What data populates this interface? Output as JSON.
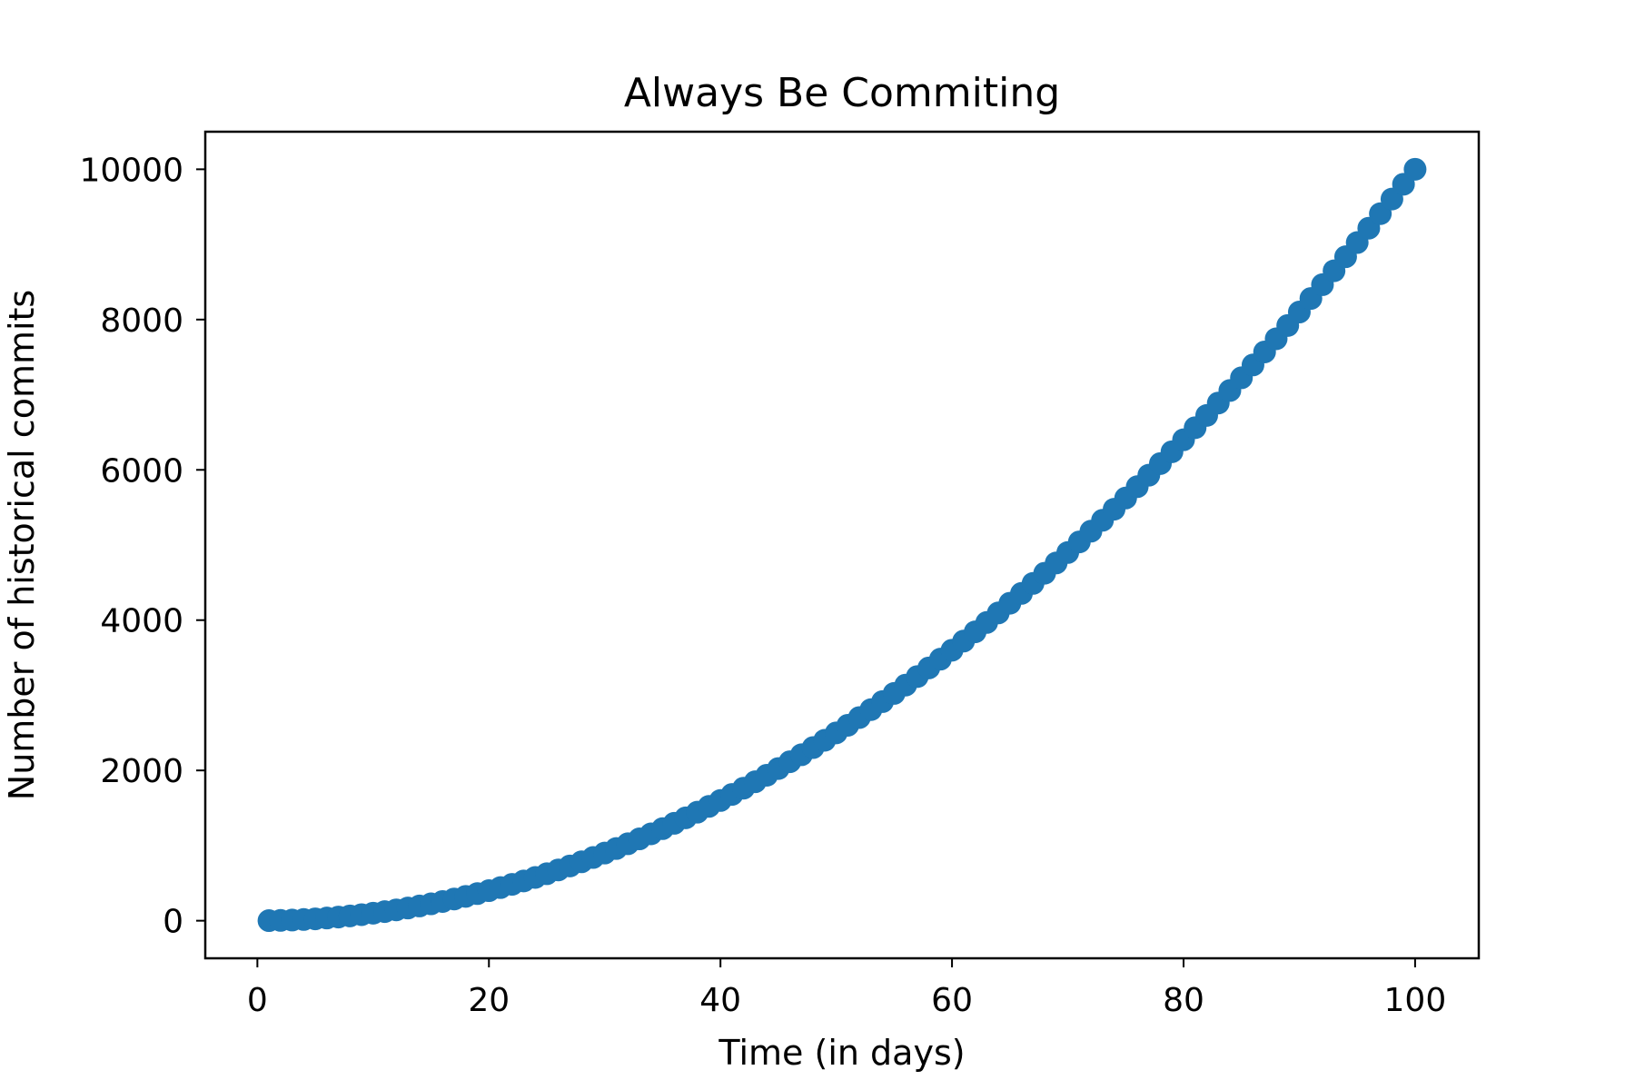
{
  "chart_data": {
    "type": "scatter",
    "title": "Always Be Commiting",
    "xlabel": "Time (in days)",
    "ylabel": "Number of historical commits",
    "xlim": [
      -4.5,
      105.5
    ],
    "ylim": [
      -500,
      10500
    ],
    "xticks": [
      0,
      20,
      40,
      60,
      80,
      100
    ],
    "yticks": [
      0,
      2000,
      4000,
      6000,
      8000,
      10000
    ],
    "grid": false,
    "series": [
      {
        "color": "#1f77b4",
        "x_start": 1,
        "x_end": 100,
        "x_step": 1,
        "formula": "y = x^2"
      }
    ]
  }
}
